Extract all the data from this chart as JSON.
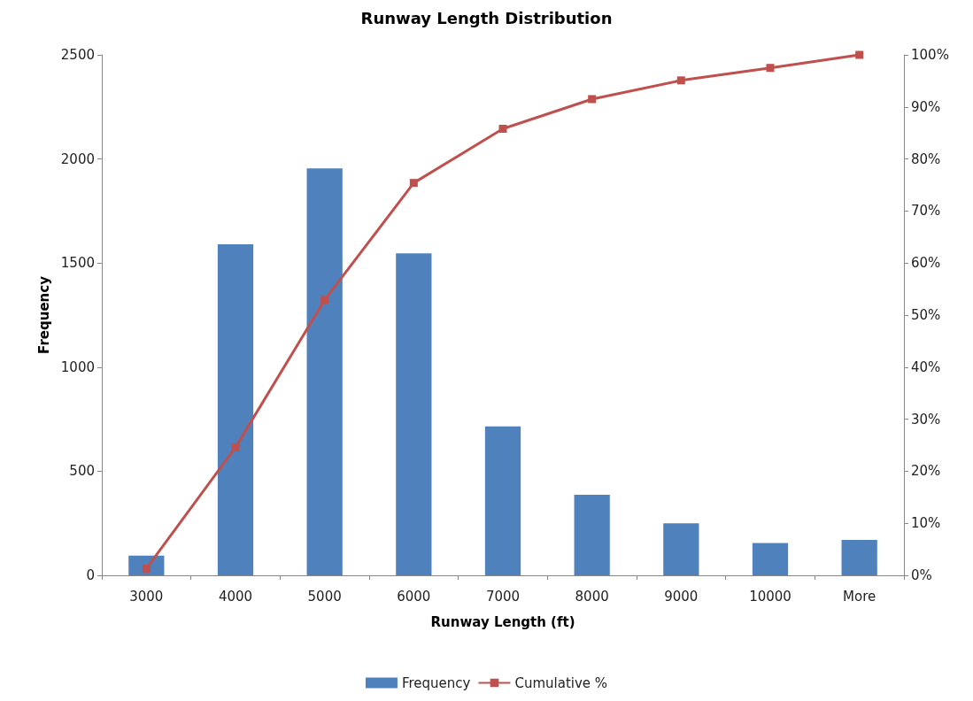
{
  "chart_data": {
    "type": "bar",
    "title": "Runway Length Distribution",
    "xlabel": "Runway Length (ft)",
    "ylabel": "Frequency",
    "categories": [
      "3000",
      "4000",
      "5000",
      "6000",
      "7000",
      "8000",
      "9000",
      "10000",
      "More"
    ],
    "series": [
      {
        "name": "Frequency",
        "color": "#4f81bd",
        "values": [
          95,
          1590,
          1955,
          1547,
          715,
          387,
          250,
          155,
          170
        ]
      },
      {
        "name": "Cumulative %",
        "type": "line",
        "axis": "y2",
        "color": "#c0504d",
        "values": [
          1.3,
          24.6,
          52.9,
          75.4,
          85.8,
          91.5,
          95.1,
          97.5,
          100
        ]
      }
    ],
    "ylim": [
      0,
      2500
    ],
    "yticks": [
      0,
      500,
      1000,
      1500,
      2000,
      2500
    ],
    "y2lim": [
      0,
      100
    ],
    "y2ticks": [
      {
        "value": 0,
        "label": "0%"
      },
      {
        "value": 10,
        "label": "10%"
      },
      {
        "value": 20,
        "label": "20%"
      },
      {
        "value": 30,
        "label": "30%"
      },
      {
        "value": 40,
        "label": "40%"
      },
      {
        "value": 50,
        "label": "50%"
      },
      {
        "value": 60,
        "label": "60%"
      },
      {
        "value": 70,
        "label": "70%"
      },
      {
        "value": 80,
        "label": "80%"
      },
      {
        "value": 90,
        "label": "90%"
      },
      {
        "value": 100,
        "label": "100%"
      }
    ],
    "grid": false,
    "legend": "bottom",
    "marker": "square"
  }
}
